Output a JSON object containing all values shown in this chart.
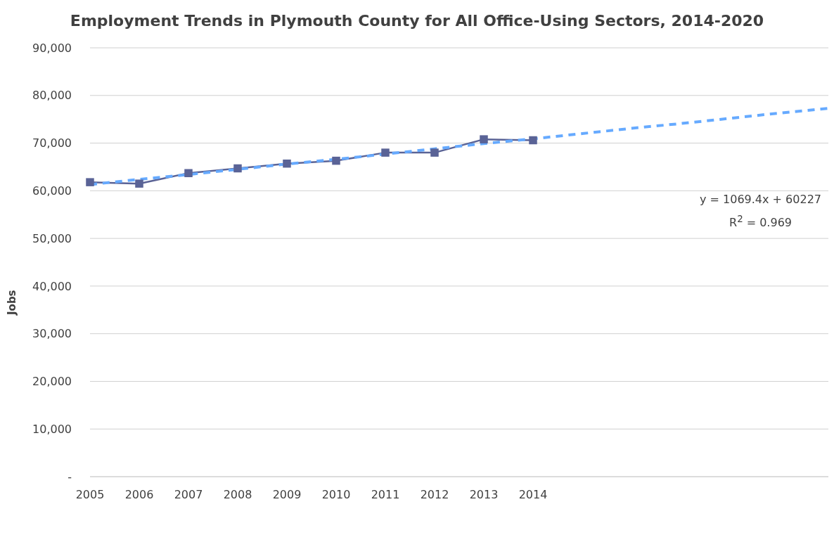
{
  "chart_data": {
    "type": "line",
    "title": "Employment Trends in Plymouth County for All Office-Using Sectors, 2014-2020",
    "ylabel": "Jobs",
    "categories": [
      "2005",
      "2006",
      "2007",
      "2008",
      "2009",
      "2010",
      "2011",
      "2012",
      "2013",
      "2014",
      null,
      null,
      null,
      null,
      null,
      null
    ],
    "series": [
      {
        "color": "#5a6396",
        "marker": "square",
        "line_style": "solid",
        "values": [
          61800,
          61500,
          63700,
          64700,
          65700,
          66300,
          68000,
          68000,
          70800,
          70600,
          null,
          null,
          null,
          null,
          null,
          null
        ]
      },
      {
        "type": "line",
        "color": "#66aaff",
        "marker": "none",
        "line_style": "dashed",
        "values": [
          61300,
          62400,
          63400,
          64500,
          65600,
          66600,
          67700,
          68800,
          69900,
          70900,
          72000,
          73100,
          74100,
          75200,
          76300,
          77300
        ]
      }
    ],
    "ylim": [
      0,
      90000
    ],
    "yticks": [
      {
        "value": 0,
        "label": "-"
      },
      {
        "value": 10000,
        "label": "10,000"
      },
      {
        "value": 20000,
        "label": "20,000"
      },
      {
        "value": 30000,
        "label": "30,000"
      },
      {
        "value": 40000,
        "label": "40,000"
      },
      {
        "value": 50000,
        "label": "50,000"
      },
      {
        "value": 60000,
        "label": "60,000"
      },
      {
        "value": 70000,
        "label": "70,000"
      },
      {
        "value": 80000,
        "label": "80,000"
      },
      {
        "value": 90000,
        "label": "90,000"
      }
    ],
    "grid": "y",
    "annotations": [
      "y = 1069.4x + 60227",
      "R$^{2}$ = 0.969"
    ]
  }
}
